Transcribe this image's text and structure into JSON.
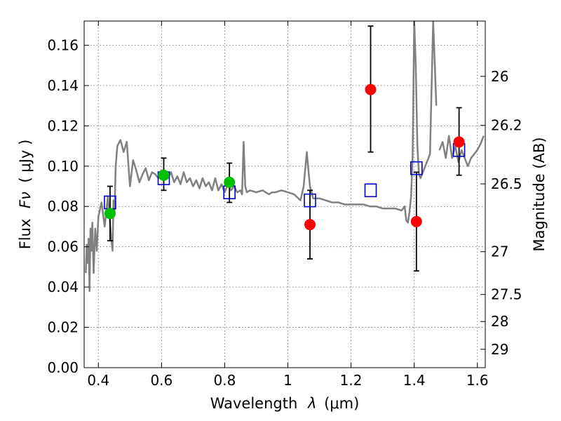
{
  "chart_data": {
    "type": "scatter",
    "xlabel_prefix": "Wavelength",
    "xlabel_symbol": "λ",
    "xlabel_unit": "(μm)",
    "ylabel_prefix": "Flux",
    "ylabel_symbol": "Fν",
    "ylabel_unit": "( μJy )",
    "y2label": "Magnitude (AB)",
    "xlim": [
      0.355,
      1.625
    ],
    "ylim": [
      0.0,
      0.172
    ],
    "grid": true,
    "x_ticks": [
      0.4,
      0.6,
      0.8,
      1.0,
      1.2,
      1.4,
      1.6
    ],
    "x_tick_labels": [
      "0.4",
      "0.6",
      "0.8",
      "1",
      "1.2",
      "1.4",
      "1.6"
    ],
    "y_ticks": [
      0.0,
      0.02,
      0.04,
      0.06,
      0.08,
      0.1,
      0.12,
      0.14,
      0.16
    ],
    "y_tick_labels": [
      "0.00",
      "0.02",
      "0.04",
      "0.06",
      "0.08",
      "0.10",
      "0.12",
      "0.14",
      "0.16"
    ],
    "y2_ticks": [
      {
        "label": "26",
        "value": 26.0
      },
      {
        "label": "26.2",
        "value": 26.2
      },
      {
        "label": "26.5",
        "value": 26.5
      },
      {
        "label": "27",
        "value": 27.0
      },
      {
        "label": "27.5",
        "value": 27.5
      },
      {
        "label": "28",
        "value": 28.0
      },
      {
        "label": "29",
        "value": 29.0
      }
    ],
    "colors": {
      "model": "#808080",
      "model_photometry": "#0000cc",
      "detections": "#00c000",
      "upper_limits": "#ff0000",
      "errorbars": "#000000"
    },
    "model_spectrum": {
      "x": [
        0.36,
        0.363,
        0.366,
        0.369,
        0.372,
        0.375,
        0.378,
        0.381,
        0.385,
        0.39,
        0.395,
        0.4,
        0.41,
        0.42,
        0.43,
        0.44,
        0.445,
        0.448,
        0.451,
        0.455,
        0.46,
        0.47,
        0.48,
        0.49,
        0.5,
        0.51,
        0.52,
        0.53,
        0.54,
        0.55,
        0.56,
        0.57,
        0.58,
        0.59,
        0.6,
        0.61,
        0.62,
        0.63,
        0.64,
        0.65,
        0.66,
        0.67,
        0.68,
        0.69,
        0.7,
        0.71,
        0.72,
        0.73,
        0.74,
        0.75,
        0.76,
        0.77,
        0.78,
        0.79,
        0.8,
        0.81,
        0.82,
        0.83,
        0.84,
        0.85,
        0.855,
        0.86,
        0.865,
        0.87,
        0.88,
        0.9,
        0.92,
        0.94,
        0.95,
        0.96,
        0.98,
        1.0,
        1.02,
        1.04,
        1.05,
        1.06,
        1.065,
        1.07,
        1.08,
        1.1,
        1.12,
        1.14,
        1.16,
        1.18,
        1.2,
        1.22,
        1.24,
        1.26,
        1.28,
        1.3,
        1.32,
        1.34,
        1.36,
        1.37,
        1.375,
        1.38,
        1.385,
        1.39,
        1.395,
        1.4,
        1.405,
        1.41,
        1.415,
        1.42,
        1.43,
        1.44,
        1.45,
        1.46,
        1.47,
        1.48,
        1.49,
        1.5,
        1.51,
        1.52,
        1.53,
        1.54,
        1.55,
        1.56,
        1.57,
        1.58,
        1.59,
        1.6,
        1.61,
        1.62
      ],
      "y": [
        0.047,
        0.061,
        0.052,
        0.064,
        0.038,
        0.069,
        0.058,
        0.072,
        0.047,
        0.069,
        0.058,
        0.075,
        0.082,
        0.07,
        0.085,
        0.066,
        0.058,
        0.083,
        0.076,
        0.1,
        0.11,
        0.113,
        0.107,
        0.112,
        0.09,
        0.103,
        0.098,
        0.092,
        0.096,
        0.099,
        0.093,
        0.097,
        0.096,
        0.094,
        0.098,
        0.095,
        0.094,
        0.097,
        0.092,
        0.095,
        0.091,
        0.097,
        0.092,
        0.094,
        0.09,
        0.093,
        0.089,
        0.094,
        0.09,
        0.092,
        0.088,
        0.094,
        0.088,
        0.091,
        0.087,
        0.091,
        0.088,
        0.09,
        0.087,
        0.088,
        0.086,
        0.112,
        0.09,
        0.087,
        0.088,
        0.087,
        0.088,
        0.086,
        0.087,
        0.087,
        0.088,
        0.087,
        0.086,
        0.083,
        0.09,
        0.107,
        0.098,
        0.09,
        0.084,
        0.084,
        0.083,
        0.082,
        0.082,
        0.081,
        0.081,
        0.081,
        0.081,
        0.08,
        0.08,
        0.079,
        0.079,
        0.079,
        0.078,
        0.08,
        0.073,
        0.072,
        0.077,
        0.085,
        0.105,
        0.172,
        0.15,
        0.11,
        0.096,
        0.094,
        0.098,
        0.102,
        0.106,
        0.172,
        0.13,
        0.108,
        0.112,
        0.104,
        0.115,
        0.104,
        0.11,
        0.102,
        0.108,
        0.104,
        0.1,
        0.104,
        0.106,
        0.108,
        0.111,
        0.115
      ],
      "break_at": 109
    },
    "model_photometry": {
      "x": [
        0.437,
        0.607,
        0.815,
        1.07,
        1.262,
        1.407,
        1.542
      ],
      "y": [
        0.082,
        0.094,
        0.087,
        0.083,
        0.088,
        0.099,
        0.108
      ]
    },
    "detections": {
      "x": [
        0.437,
        0.607,
        0.815
      ],
      "y": [
        0.0765,
        0.0955,
        0.092
      ],
      "yerr_low": [
        0.063,
        0.088,
        0.082
      ],
      "yerr_high": [
        0.09,
        0.104,
        0.1015
      ]
    },
    "upper_limits": {
      "x": [
        1.07,
        1.262,
        1.407,
        1.542
      ],
      "y": [
        0.071,
        0.138,
        0.0725,
        0.112
      ],
      "yerr_low": [
        0.054,
        0.107,
        0.048,
        0.0955
      ],
      "yerr_high": [
        0.088,
        0.1695,
        0.097,
        0.129
      ]
    }
  }
}
